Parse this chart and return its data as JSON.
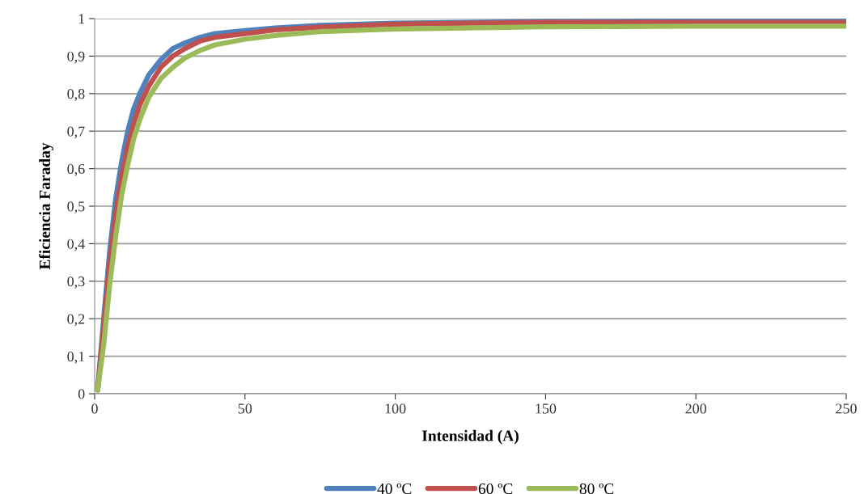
{
  "chart_data": {
    "type": "line",
    "xlabel": "Intensidad (A)",
    "ylabel": "Eficiencia Faraday",
    "xlim": [
      0,
      250
    ],
    "xticks": [
      0,
      50,
      100,
      150,
      200,
      250
    ],
    "ylim": [
      0,
      1
    ],
    "yticks": [
      0,
      {
        "value": 0.1,
        "label": "0,1"
      },
      {
        "value": 0.2,
        "label": "0,2"
      },
      {
        "value": 0.3,
        "label": "0,3"
      },
      {
        "value": 0.4,
        "label": "0,4"
      },
      {
        "value": 0.5,
        "label": "0,5"
      },
      {
        "value": 0.6,
        "label": "0,6"
      },
      {
        "value": 0.7,
        "label": "0,7"
      },
      {
        "value": 0.8,
        "label": "0,8"
      },
      {
        "value": 0.9,
        "label": "0,9"
      },
      1
    ],
    "grid": "y",
    "legend": "bottom",
    "marker": "none",
    "line_style": "solid",
    "x": [
      1,
      3,
      5,
      7,
      9,
      11,
      13,
      15,
      18,
      22,
      26,
      30,
      35,
      40,
      50,
      60,
      75,
      100,
      150,
      200,
      250
    ],
    "series": [
      {
        "name": "40 ºC",
        "color": "#4f81bd",
        "values": [
          0.01,
          0.2,
          0.38,
          0.52,
          0.62,
          0.7,
          0.76,
          0.8,
          0.85,
          0.89,
          0.92,
          0.935,
          0.95,
          0.96,
          0.968,
          0.975,
          0.982,
          0.988,
          0.992,
          0.993,
          0.993
        ]
      },
      {
        "name": "60 ºC",
        "color": "#c0504d",
        "values": [
          0.01,
          0.18,
          0.35,
          0.48,
          0.58,
          0.66,
          0.72,
          0.77,
          0.82,
          0.87,
          0.9,
          0.92,
          0.94,
          0.95,
          0.96,
          0.97,
          0.977,
          0.985,
          0.99,
          0.99,
          0.99
        ]
      },
      {
        "name": "80 ºC",
        "color": "#9bbb59",
        "values": [
          0.01,
          0.13,
          0.29,
          0.42,
          0.53,
          0.61,
          0.68,
          0.73,
          0.79,
          0.84,
          0.87,
          0.895,
          0.915,
          0.93,
          0.945,
          0.955,
          0.965,
          0.972,
          0.978,
          0.98,
          0.98
        ]
      }
    ]
  }
}
